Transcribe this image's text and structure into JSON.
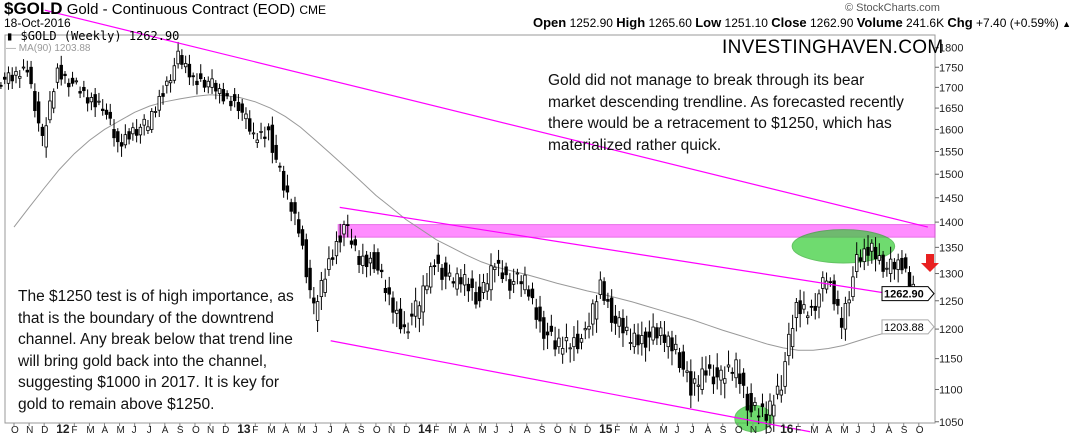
{
  "header": {
    "symbol": "$GOLD",
    "name": "Gold - Continuous Contract (EOD)",
    "exchange": "CME",
    "date": "18-Oct-2016",
    "credit": "© StockCharts.com",
    "legend": "$GOLD (Weekly) 1262.90",
    "ma_legend": "MA(90) 1203.88",
    "stats": [
      {
        "k": "Open",
        "v": "1252.90"
      },
      {
        "k": "High",
        "v": "1265.60"
      },
      {
        "k": "Low",
        "v": "1251.10"
      },
      {
        "k": "Close",
        "v": "1262.90"
      },
      {
        "k": "Volume",
        "v": "241.6K"
      },
      {
        "k": "Chg",
        "v": "+7.40 (+0.59%)"
      }
    ]
  },
  "annotations": {
    "brand": "INVESTINGHAVEN.COM",
    "top_text": [
      "Gold did not manage to break through its bear",
      "market descending trendline. As forecasted recently",
      "there would be a retracement to $1250, which has",
      "materialized rather quick."
    ],
    "left_text": [
      "The $1250 test is of high importance, as",
      "that is the boundary of the downtrend",
      "channel. Any break below that trend line",
      "will bring gold back into the channel,",
      "suggesting $1000 in 2017. It is key for",
      "gold to remain above $1250."
    ]
  },
  "colors": {
    "trendline": "#ff00ff",
    "band": "#ff66ff",
    "highlight": "#33cc33",
    "arrow": "#e82020",
    "ma": "#999999"
  },
  "chart_data": {
    "type": "candlestick",
    "scale": "log",
    "ylim": [
      1040,
      1830
    ],
    "yticks": [
      1050,
      1100,
      1150,
      1200,
      1250,
      1300,
      1350,
      1400,
      1450,
      1500,
      1550,
      1600,
      1650,
      1700,
      1750,
      1800
    ],
    "last_price_label": "1262.90",
    "ma_label": "1203.88",
    "xticks": [
      "O",
      "N",
      "D",
      "12",
      "F",
      "M",
      "A",
      "M",
      "J",
      "J",
      "A",
      "S",
      "O",
      "N",
      "D",
      "13",
      "F",
      "M",
      "A",
      "M",
      "J",
      "J",
      "A",
      "S",
      "O",
      "N",
      "D",
      "14",
      "F",
      "M",
      "A",
      "M",
      "J",
      "J",
      "A",
      "S",
      "O",
      "N",
      "D",
      "15",
      "F",
      "M",
      "A",
      "M",
      "J",
      "J",
      "A",
      "S",
      "O",
      "N",
      "D",
      "16",
      "F",
      "M",
      "A",
      "M",
      "J",
      "J",
      "A",
      "S",
      "O"
    ],
    "x_start": "2011-10",
    "monthly_close": [
      1720,
      1750,
      1570,
      1740,
      1710,
      1670,
      1660,
      1560,
      1600,
      1610,
      1690,
      1775,
      1720,
      1715,
      1675,
      1660,
      1580,
      1595,
      1470,
      1390,
      1230,
      1320,
      1395,
      1325,
      1325,
      1250,
      1200,
      1245,
      1325,
      1285,
      1290,
      1250,
      1320,
      1285,
      1285,
      1210,
      1170,
      1180,
      1185,
      1280,
      1210,
      1185,
      1185,
      1190,
      1170,
      1095,
      1135,
      1115,
      1140,
      1065,
      1060,
      1115,
      1235,
      1235,
      1290,
      1215,
      1320,
      1350,
      1310,
      1315,
      1263
    ],
    "ma90_monthly": [
      1390,
      1430,
      1470,
      1510,
      1545,
      1575,
      1600,
      1620,
      1640,
      1655,
      1665,
      1672,
      1678,
      1682,
      1680,
      1675,
      1665,
      1650,
      1630,
      1605,
      1575,
      1545,
      1515,
      1485,
      1455,
      1430,
      1405,
      1385,
      1365,
      1350,
      1335,
      1322,
      1312,
      1305,
      1298,
      1290,
      1282,
      1275,
      1268,
      1262,
      1255,
      1248,
      1240,
      1232,
      1224,
      1216,
      1207,
      1198,
      1190,
      1182,
      1174,
      1168,
      1164,
      1164,
      1167,
      1172,
      1180,
      1188,
      1195,
      1200,
      1204
    ],
    "trendlines": [
      {
        "name": "bear-market-trendline",
        "from": [
          0.17,
          1900
        ],
        "to": [
          5.05,
          1390
        ]
      },
      {
        "name": "channel-upper-trendline",
        "from": [
          1.8,
          1430
        ],
        "to": [
          5.05,
          1252
        ]
      },
      {
        "name": "channel-lower-trendline",
        "from": [
          1.75,
          1180
        ],
        "to": [
          4.4,
          1035
        ]
      }
    ],
    "resistance_band": {
      "from_month": 21.5,
      "low": 1370,
      "high": 1395
    },
    "highlights": [
      {
        "month": [
          51.6,
          58.4
        ],
        "price": [
          1320,
          1385
        ]
      },
      {
        "month": [
          47.8,
          50.3
        ],
        "price": [
          1035,
          1075
        ]
      }
    ]
  }
}
